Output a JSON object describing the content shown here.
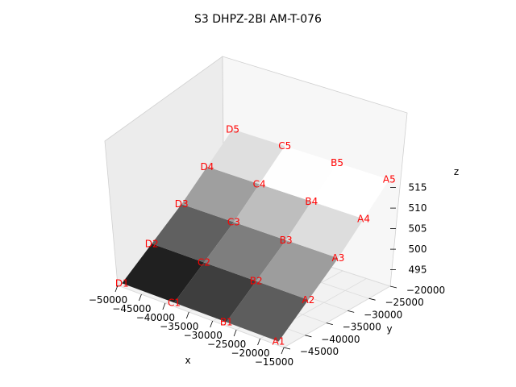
{
  "chart_data": {
    "type": "surface3d",
    "title": "S3 DHPZ-2BI AM-T-076",
    "xlabel": "x",
    "ylabel": "y",
    "zlabel": "z",
    "x_ticks": [
      "−50000",
      "−45000",
      "−40000",
      "−35000",
      "−30000",
      "−25000",
      "−20000",
      "−15000"
    ],
    "y_ticks": [
      "−45000",
      "−40000",
      "−35000",
      "−30000",
      "−25000",
      "−20000"
    ],
    "z_ticks": [
      "495",
      "500",
      "505",
      "510",
      "515"
    ],
    "grid": true,
    "colormap": "gray",
    "label_color": "#ff0000",
    "points": [
      {
        "label": "A1",
        "x": -17000,
        "y": -44000,
        "z": 491
      },
      {
        "label": "B1",
        "x": -28000,
        "y": -44000,
        "z": 491
      },
      {
        "label": "C1",
        "x": -39000,
        "y": -44000,
        "z": 491
      },
      {
        "label": "D1",
        "x": -50000,
        "y": -44000,
        "z": 491
      },
      {
        "label": "A2",
        "x": -17000,
        "y": -37000,
        "z": 497
      },
      {
        "label": "B2",
        "x": -28000,
        "y": -37000,
        "z": 497
      },
      {
        "label": "C2",
        "x": -39000,
        "y": -37000,
        "z": 497
      },
      {
        "label": "D2",
        "x": -50000,
        "y": -37000,
        "z": 497
      },
      {
        "label": "A3",
        "x": -17000,
        "y": -30000,
        "z": 503
      },
      {
        "label": "B3",
        "x": -28000,
        "y": -30000,
        "z": 503
      },
      {
        "label": "C3",
        "x": -39000,
        "y": -30000,
        "z": 503
      },
      {
        "label": "D3",
        "x": -50000,
        "y": -30000,
        "z": 503
      },
      {
        "label": "A4",
        "x": -17000,
        "y": -24000,
        "z": 509
      },
      {
        "label": "B4",
        "x": -28000,
        "y": -24000,
        "z": 509
      },
      {
        "label": "C4",
        "x": -39000,
        "y": -24000,
        "z": 509
      },
      {
        "label": "D4",
        "x": -50000,
        "y": -24000,
        "z": 509
      },
      {
        "label": "A5",
        "x": -17000,
        "y": -18000,
        "z": 515
      },
      {
        "label": "B5",
        "x": -28000,
        "y": -18000,
        "z": 515
      },
      {
        "label": "C5",
        "x": -39000,
        "y": -18000,
        "z": 515
      },
      {
        "label": "D5",
        "x": -50000,
        "y": -18000,
        "z": 515
      }
    ]
  }
}
